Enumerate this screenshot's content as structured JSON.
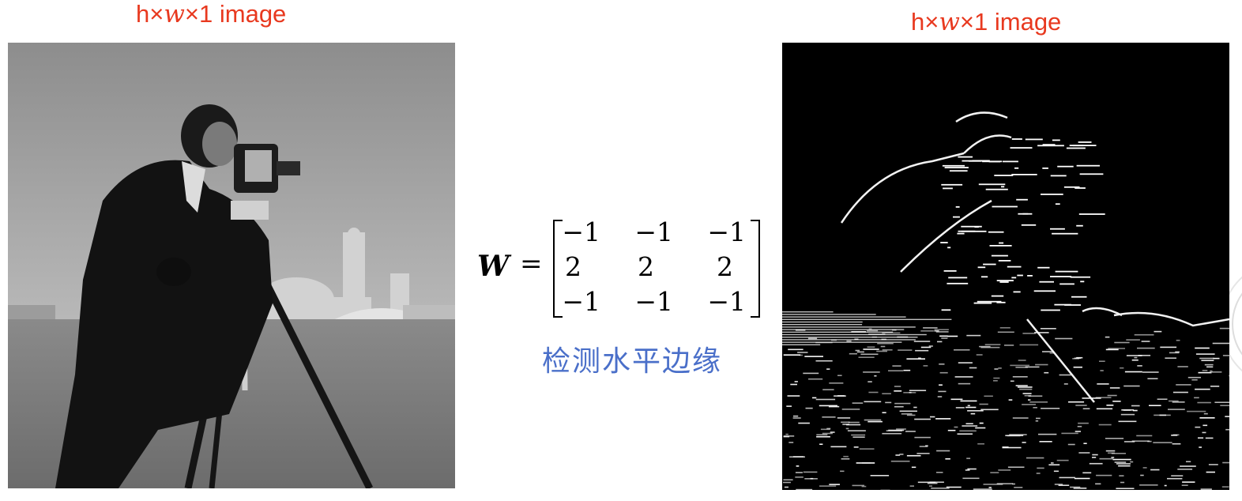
{
  "left_image": {
    "title_prefix": "h×",
    "title_var": "w",
    "title_suffix": "×1 image"
  },
  "right_image": {
    "title_prefix": "h×",
    "title_var": "w",
    "title_suffix": "×1 image"
  },
  "equation": {
    "symbol": "W",
    "equals": "=",
    "matrix": [
      [
        "−1",
        "−1",
        "−1"
      ],
      [
        "2",
        "2",
        "2"
      ],
      [
        "−1",
        "−1",
        "−1"
      ]
    ]
  },
  "caption": "检测水平边缘",
  "colors": {
    "title": "#e8391f",
    "caption": "#4a6fc9"
  }
}
